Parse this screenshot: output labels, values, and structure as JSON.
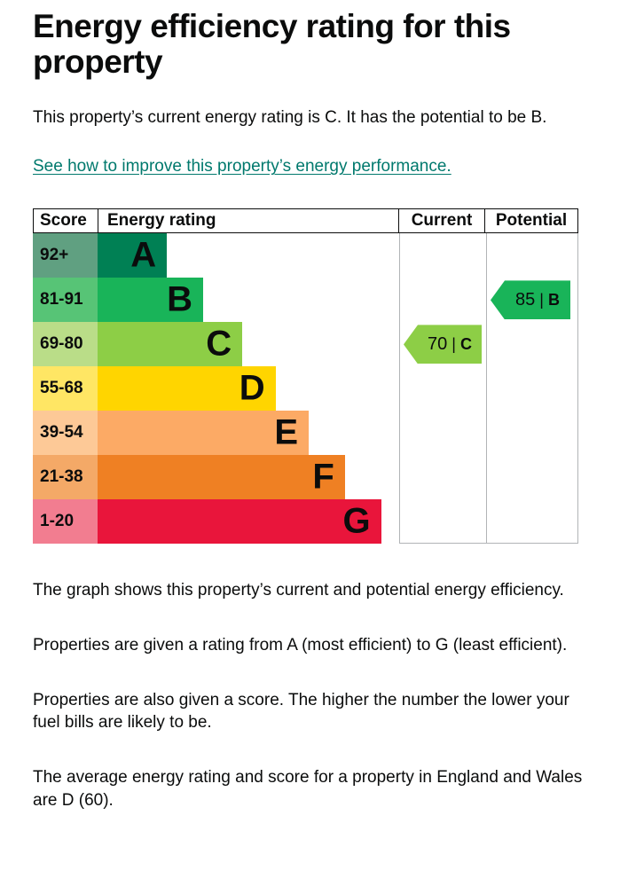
{
  "header": {
    "title": "Energy efficiency rating for this property",
    "intro": "This property’s current energy rating is C. It has the potential to be B.",
    "link_text": "See how to improve this property’s energy performance."
  },
  "chart_data": {
    "type": "bar",
    "title": "Energy efficiency rating for this property",
    "headers": [
      "Score",
      "Energy rating",
      "Current",
      "Potential"
    ],
    "bands": [
      {
        "score": "92+",
        "letter": "A",
        "color": "#008054",
        "score_bg": "#60a081",
        "width_pct": 23
      },
      {
        "score": "81-91",
        "letter": "B",
        "color": "#19b459",
        "score_bg": "#57c476",
        "width_pct": 35
      },
      {
        "score": "69-80",
        "letter": "C",
        "color": "#8dce46",
        "score_bg": "#badd88",
        "width_pct": 48
      },
      {
        "score": "55-68",
        "letter": "D",
        "color": "#ffd500",
        "score_bg": "#ffe664",
        "width_pct": 59
      },
      {
        "score": "39-54",
        "letter": "E",
        "color": "#fcaa65",
        "score_bg": "#fdc997",
        "width_pct": 70
      },
      {
        "score": "21-38",
        "letter": "F",
        "color": "#ef8023",
        "score_bg": "#f4a967",
        "width_pct": 82
      },
      {
        "score": "1-20",
        "letter": "G",
        "color": "#e9153b",
        "score_bg": "#f27d90",
        "width_pct": 94
      }
    ],
    "current": {
      "score": 70,
      "band": "C",
      "color": "#8dce46"
    },
    "potential": {
      "score": 85,
      "band": "B",
      "color": "#19b459"
    }
  },
  "paragraphs": [
    "The graph shows this property’s current and potential energy efficiency.",
    "Properties are given a rating from A (most efficient) to G (least efficient).",
    "Properties are also given a score. The higher the number the lower your fuel bills are likely to be.",
    "The average energy rating and score for a property in England and Wales are D (60)."
  ]
}
